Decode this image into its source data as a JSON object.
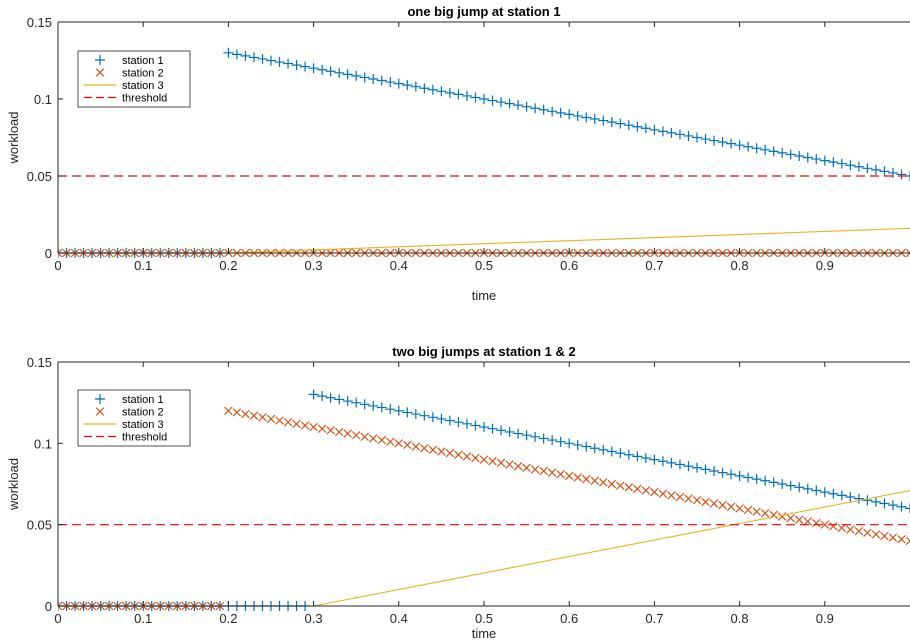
{
  "chart_data": [
    {
      "type": "line",
      "title": "one big jump at station 1",
      "xlabel": "time",
      "ylabel": "workload",
      "xlim": [
        0,
        1
      ],
      "ylim": [
        0,
        0.15
      ],
      "xticks": [
        "0",
        "0.1",
        "0.2",
        "0.3",
        "0.4",
        "0.5",
        "0.6",
        "0.7",
        "0.8",
        "0.9"
      ],
      "yticks": [
        "0",
        "0.05",
        "0.1",
        "0.15"
      ],
      "grid": false,
      "legend_position": "top-left",
      "series": [
        {
          "name": "station 1",
          "color": "#0072BD",
          "marker": "+",
          "x": [
            0,
            0.01,
            0.02,
            0.03,
            0.04,
            0.05,
            0.06,
            0.07,
            0.08,
            0.09,
            0.1,
            0.11,
            0.12,
            0.13,
            0.14,
            0.15,
            0.16,
            0.17,
            0.18,
            0.19,
            0.2,
            0.21,
            0.22,
            0.23,
            0.24,
            0.25,
            0.26,
            0.27,
            0.28,
            0.29,
            0.3,
            0.31,
            0.32,
            0.33,
            0.34,
            0.35,
            0.36,
            0.37,
            0.38,
            0.39,
            0.4,
            0.41,
            0.42,
            0.43,
            0.44,
            0.45,
            0.46,
            0.47,
            0.48,
            0.49,
            0.5,
            0.51,
            0.52,
            0.53,
            0.54,
            0.55,
            0.56,
            0.57,
            0.58,
            0.59,
            0.6,
            0.61,
            0.62,
            0.63,
            0.64,
            0.65,
            0.66,
            0.67,
            0.68,
            0.69,
            0.7,
            0.71,
            0.72,
            0.73,
            0.74,
            0.75,
            0.76,
            0.77,
            0.78,
            0.79,
            0.8,
            0.81,
            0.82,
            0.83,
            0.84,
            0.85,
            0.86,
            0.87,
            0.88,
            0.89,
            0.9,
            0.91,
            0.92,
            0.93,
            0.94,
            0.95,
            0.96,
            0.97,
            0.98,
            0.99,
            1.0
          ],
          "y": [
            0,
            0,
            0,
            0,
            0,
            0,
            0,
            0,
            0,
            0,
            0,
            0,
            0,
            0,
            0,
            0,
            0,
            0,
            0,
            0,
            0.13,
            0.129,
            0.128,
            0.127,
            0.126,
            0.125,
            0.124,
            0.123,
            0.122,
            0.121,
            0.12,
            0.119,
            0.118,
            0.117,
            0.116,
            0.115,
            0.114,
            0.113,
            0.112,
            0.111,
            0.11,
            0.109,
            0.108,
            0.107,
            0.106,
            0.105,
            0.104,
            0.103,
            0.102,
            0.101,
            0.1,
            0.099,
            0.098,
            0.097,
            0.096,
            0.095,
            0.094,
            0.093,
            0.092,
            0.091,
            0.09,
            0.089,
            0.088,
            0.087,
            0.086,
            0.085,
            0.084,
            0.083,
            0.082,
            0.081,
            0.08,
            0.079,
            0.078,
            0.077,
            0.076,
            0.075,
            0.074,
            0.073,
            0.072,
            0.071,
            0.07,
            0.069,
            0.068,
            0.067,
            0.066,
            0.065,
            0.064,
            0.063,
            0.062,
            0.061,
            0.06,
            0.059,
            0.058,
            0.057,
            0.056,
            0.055,
            0.054,
            0.053,
            0.052,
            0.051,
            0.05
          ]
        },
        {
          "name": "station 2",
          "color": "#D95319",
          "marker": "x",
          "x": [
            0,
            0.01,
            0.02,
            0.03,
            0.04,
            0.05,
            0.06,
            0.07,
            0.08,
            0.09,
            0.1,
            0.11,
            0.12,
            0.13,
            0.14,
            0.15,
            0.16,
            0.17,
            0.18,
            0.19,
            0.2,
            0.21,
            0.22,
            0.23,
            0.24,
            0.25,
            0.26,
            0.27,
            0.28,
            0.29,
            0.3,
            0.31,
            0.32,
            0.33,
            0.34,
            0.35,
            0.36,
            0.37,
            0.38,
            0.39,
            0.4,
            0.41,
            0.42,
            0.43,
            0.44,
            0.45,
            0.46,
            0.47,
            0.48,
            0.49,
            0.5,
            0.51,
            0.52,
            0.53,
            0.54,
            0.55,
            0.56,
            0.57,
            0.58,
            0.59,
            0.6,
            0.61,
            0.62,
            0.63,
            0.64,
            0.65,
            0.66,
            0.67,
            0.68,
            0.69,
            0.7,
            0.71,
            0.72,
            0.73,
            0.74,
            0.75,
            0.76,
            0.77,
            0.78,
            0.79,
            0.8,
            0.81,
            0.82,
            0.83,
            0.84,
            0.85,
            0.86,
            0.87,
            0.88,
            0.89,
            0.9,
            0.91,
            0.92,
            0.93,
            0.94,
            0.95,
            0.96,
            0.97,
            0.98,
            0.99,
            1.0
          ],
          "y": [
            0,
            0,
            0,
            0,
            0,
            0,
            0,
            0,
            0,
            0,
            0,
            0,
            0,
            0,
            0,
            0,
            0,
            0,
            0,
            0,
            0,
            0,
            0,
            0,
            0,
            0,
            0,
            0,
            0,
            0,
            0,
            0,
            0,
            0,
            0,
            0,
            0,
            0,
            0,
            0,
            0,
            0,
            0,
            0,
            0,
            0,
            0,
            0,
            0,
            0,
            0,
            0,
            0,
            0,
            0,
            0,
            0,
            0,
            0,
            0,
            0,
            0,
            0,
            0,
            0,
            0,
            0,
            0,
            0,
            0,
            0,
            0,
            0,
            0,
            0,
            0,
            0,
            0,
            0,
            0,
            0,
            0,
            0,
            0,
            0,
            0,
            0,
            0,
            0,
            0,
            0,
            0,
            0,
            0,
            0,
            0,
            0,
            0,
            0,
            0,
            0
          ]
        },
        {
          "name": "station 3",
          "color": "#EDB120",
          "marker": "none",
          "x": [
            0,
            0.2,
            1.0
          ],
          "y": [
            0,
            0,
            0.016
          ]
        },
        {
          "name": "threshold",
          "color": "#FF0000",
          "marker": "none",
          "dashed": true,
          "x": [
            0,
            1.0
          ],
          "y": [
            0.05,
            0.05
          ]
        }
      ]
    },
    {
      "type": "line",
      "title": "two big jumps at station 1 & 2",
      "xlabel": "time",
      "ylabel": "workload",
      "xlim": [
        0,
        1
      ],
      "ylim": [
        0,
        0.15
      ],
      "xticks": [
        "0",
        "0.1",
        "0.2",
        "0.3",
        "0.4",
        "0.5",
        "0.6",
        "0.7",
        "0.8",
        "0.9"
      ],
      "yticks": [
        "0",
        "0.05",
        "0.1",
        "0.15"
      ],
      "grid": false,
      "legend_position": "top-left",
      "series": [
        {
          "name": "station 1",
          "color": "#0072BD",
          "marker": "+",
          "x": [
            0,
            0.01,
            0.02,
            0.03,
            0.04,
            0.05,
            0.06,
            0.07,
            0.08,
            0.09,
            0.1,
            0.11,
            0.12,
            0.13,
            0.14,
            0.15,
            0.16,
            0.17,
            0.18,
            0.19,
            0.2,
            0.21,
            0.22,
            0.23,
            0.24,
            0.25,
            0.26,
            0.27,
            0.28,
            0.29,
            0.3,
            0.31,
            0.32,
            0.33,
            0.34,
            0.35,
            0.36,
            0.37,
            0.38,
            0.39,
            0.4,
            0.41,
            0.42,
            0.43,
            0.44,
            0.45,
            0.46,
            0.47,
            0.48,
            0.49,
            0.5,
            0.51,
            0.52,
            0.53,
            0.54,
            0.55,
            0.56,
            0.57,
            0.58,
            0.59,
            0.6,
            0.61,
            0.62,
            0.63,
            0.64,
            0.65,
            0.66,
            0.67,
            0.68,
            0.69,
            0.7,
            0.71,
            0.72,
            0.73,
            0.74,
            0.75,
            0.76,
            0.77,
            0.78,
            0.79,
            0.8,
            0.81,
            0.82,
            0.83,
            0.84,
            0.85,
            0.86,
            0.87,
            0.88,
            0.89,
            0.9,
            0.91,
            0.92,
            0.93,
            0.94,
            0.95,
            0.96,
            0.97,
            0.98,
            0.99,
            1.0
          ],
          "y": [
            0,
            0,
            0,
            0,
            0,
            0,
            0,
            0,
            0,
            0,
            0,
            0,
            0,
            0,
            0,
            0,
            0,
            0,
            0,
            0,
            0,
            0,
            0,
            0,
            0,
            0,
            0,
            0,
            0,
            0,
            0.13,
            0.129,
            0.128,
            0.127,
            0.126,
            0.125,
            0.124,
            0.123,
            0.122,
            0.121,
            0.12,
            0.119,
            0.118,
            0.117,
            0.116,
            0.115,
            0.114,
            0.113,
            0.112,
            0.111,
            0.11,
            0.109,
            0.108,
            0.107,
            0.106,
            0.105,
            0.104,
            0.103,
            0.102,
            0.101,
            0.1,
            0.099,
            0.098,
            0.097,
            0.096,
            0.095,
            0.094,
            0.093,
            0.092,
            0.091,
            0.09,
            0.089,
            0.088,
            0.087,
            0.086,
            0.085,
            0.084,
            0.083,
            0.082,
            0.081,
            0.08,
            0.079,
            0.078,
            0.077,
            0.076,
            0.075,
            0.074,
            0.073,
            0.072,
            0.071,
            0.07,
            0.069,
            0.068,
            0.067,
            0.066,
            0.065,
            0.064,
            0.063,
            0.062,
            0.061,
            0.06
          ]
        },
        {
          "name": "station 2",
          "color": "#D95319",
          "marker": "x",
          "x": [
            0,
            0.01,
            0.02,
            0.03,
            0.04,
            0.05,
            0.06,
            0.07,
            0.08,
            0.09,
            0.1,
            0.11,
            0.12,
            0.13,
            0.14,
            0.15,
            0.16,
            0.17,
            0.18,
            0.19,
            0.2,
            0.21,
            0.22,
            0.23,
            0.24,
            0.25,
            0.26,
            0.27,
            0.28,
            0.29,
            0.3,
            0.31,
            0.32,
            0.33,
            0.34,
            0.35,
            0.36,
            0.37,
            0.38,
            0.39,
            0.4,
            0.41,
            0.42,
            0.43,
            0.44,
            0.45,
            0.46,
            0.47,
            0.48,
            0.49,
            0.5,
            0.51,
            0.52,
            0.53,
            0.54,
            0.55,
            0.56,
            0.57,
            0.58,
            0.59,
            0.6,
            0.61,
            0.62,
            0.63,
            0.64,
            0.65,
            0.66,
            0.67,
            0.68,
            0.69,
            0.7,
            0.71,
            0.72,
            0.73,
            0.74,
            0.75,
            0.76,
            0.77,
            0.78,
            0.79,
            0.8,
            0.81,
            0.82,
            0.83,
            0.84,
            0.85,
            0.86,
            0.87,
            0.88,
            0.89,
            0.9,
            0.91,
            0.92,
            0.93,
            0.94,
            0.95,
            0.96,
            0.97,
            0.98,
            0.99,
            1.0
          ],
          "y": [
            0,
            0,
            0,
            0,
            0,
            0,
            0,
            0,
            0,
            0,
            0,
            0,
            0,
            0,
            0,
            0,
            0,
            0,
            0,
            0,
            0.12,
            0.119,
            0.118,
            0.117,
            0.116,
            0.115,
            0.114,
            0.113,
            0.112,
            0.111,
            0.11,
            0.109,
            0.108,
            0.107,
            0.106,
            0.105,
            0.104,
            0.103,
            0.102,
            0.101,
            0.1,
            0.099,
            0.098,
            0.097,
            0.096,
            0.095,
            0.094,
            0.093,
            0.092,
            0.091,
            0.09,
            0.089,
            0.088,
            0.087,
            0.086,
            0.085,
            0.084,
            0.083,
            0.082,
            0.081,
            0.08,
            0.079,
            0.078,
            0.077,
            0.076,
            0.075,
            0.074,
            0.073,
            0.072,
            0.071,
            0.07,
            0.069,
            0.068,
            0.067,
            0.066,
            0.065,
            0.064,
            0.063,
            0.062,
            0.061,
            0.06,
            0.059,
            0.058,
            0.057,
            0.056,
            0.055,
            0.054,
            0.053,
            0.052,
            0.051,
            0.05,
            0.049,
            0.048,
            0.047,
            0.046,
            0.045,
            0.044,
            0.043,
            0.042,
            0.041,
            0.04
          ]
        },
        {
          "name": "station 3",
          "color": "#EDB120",
          "marker": "none",
          "x": [
            0,
            0.3,
            1.0
          ],
          "y": [
            0,
            0,
            0.071
          ]
        },
        {
          "name": "threshold",
          "color": "#FF0000",
          "marker": "none",
          "dashed": true,
          "x": [
            0,
            1.0
          ],
          "y": [
            0.05,
            0.05
          ]
        }
      ]
    }
  ]
}
